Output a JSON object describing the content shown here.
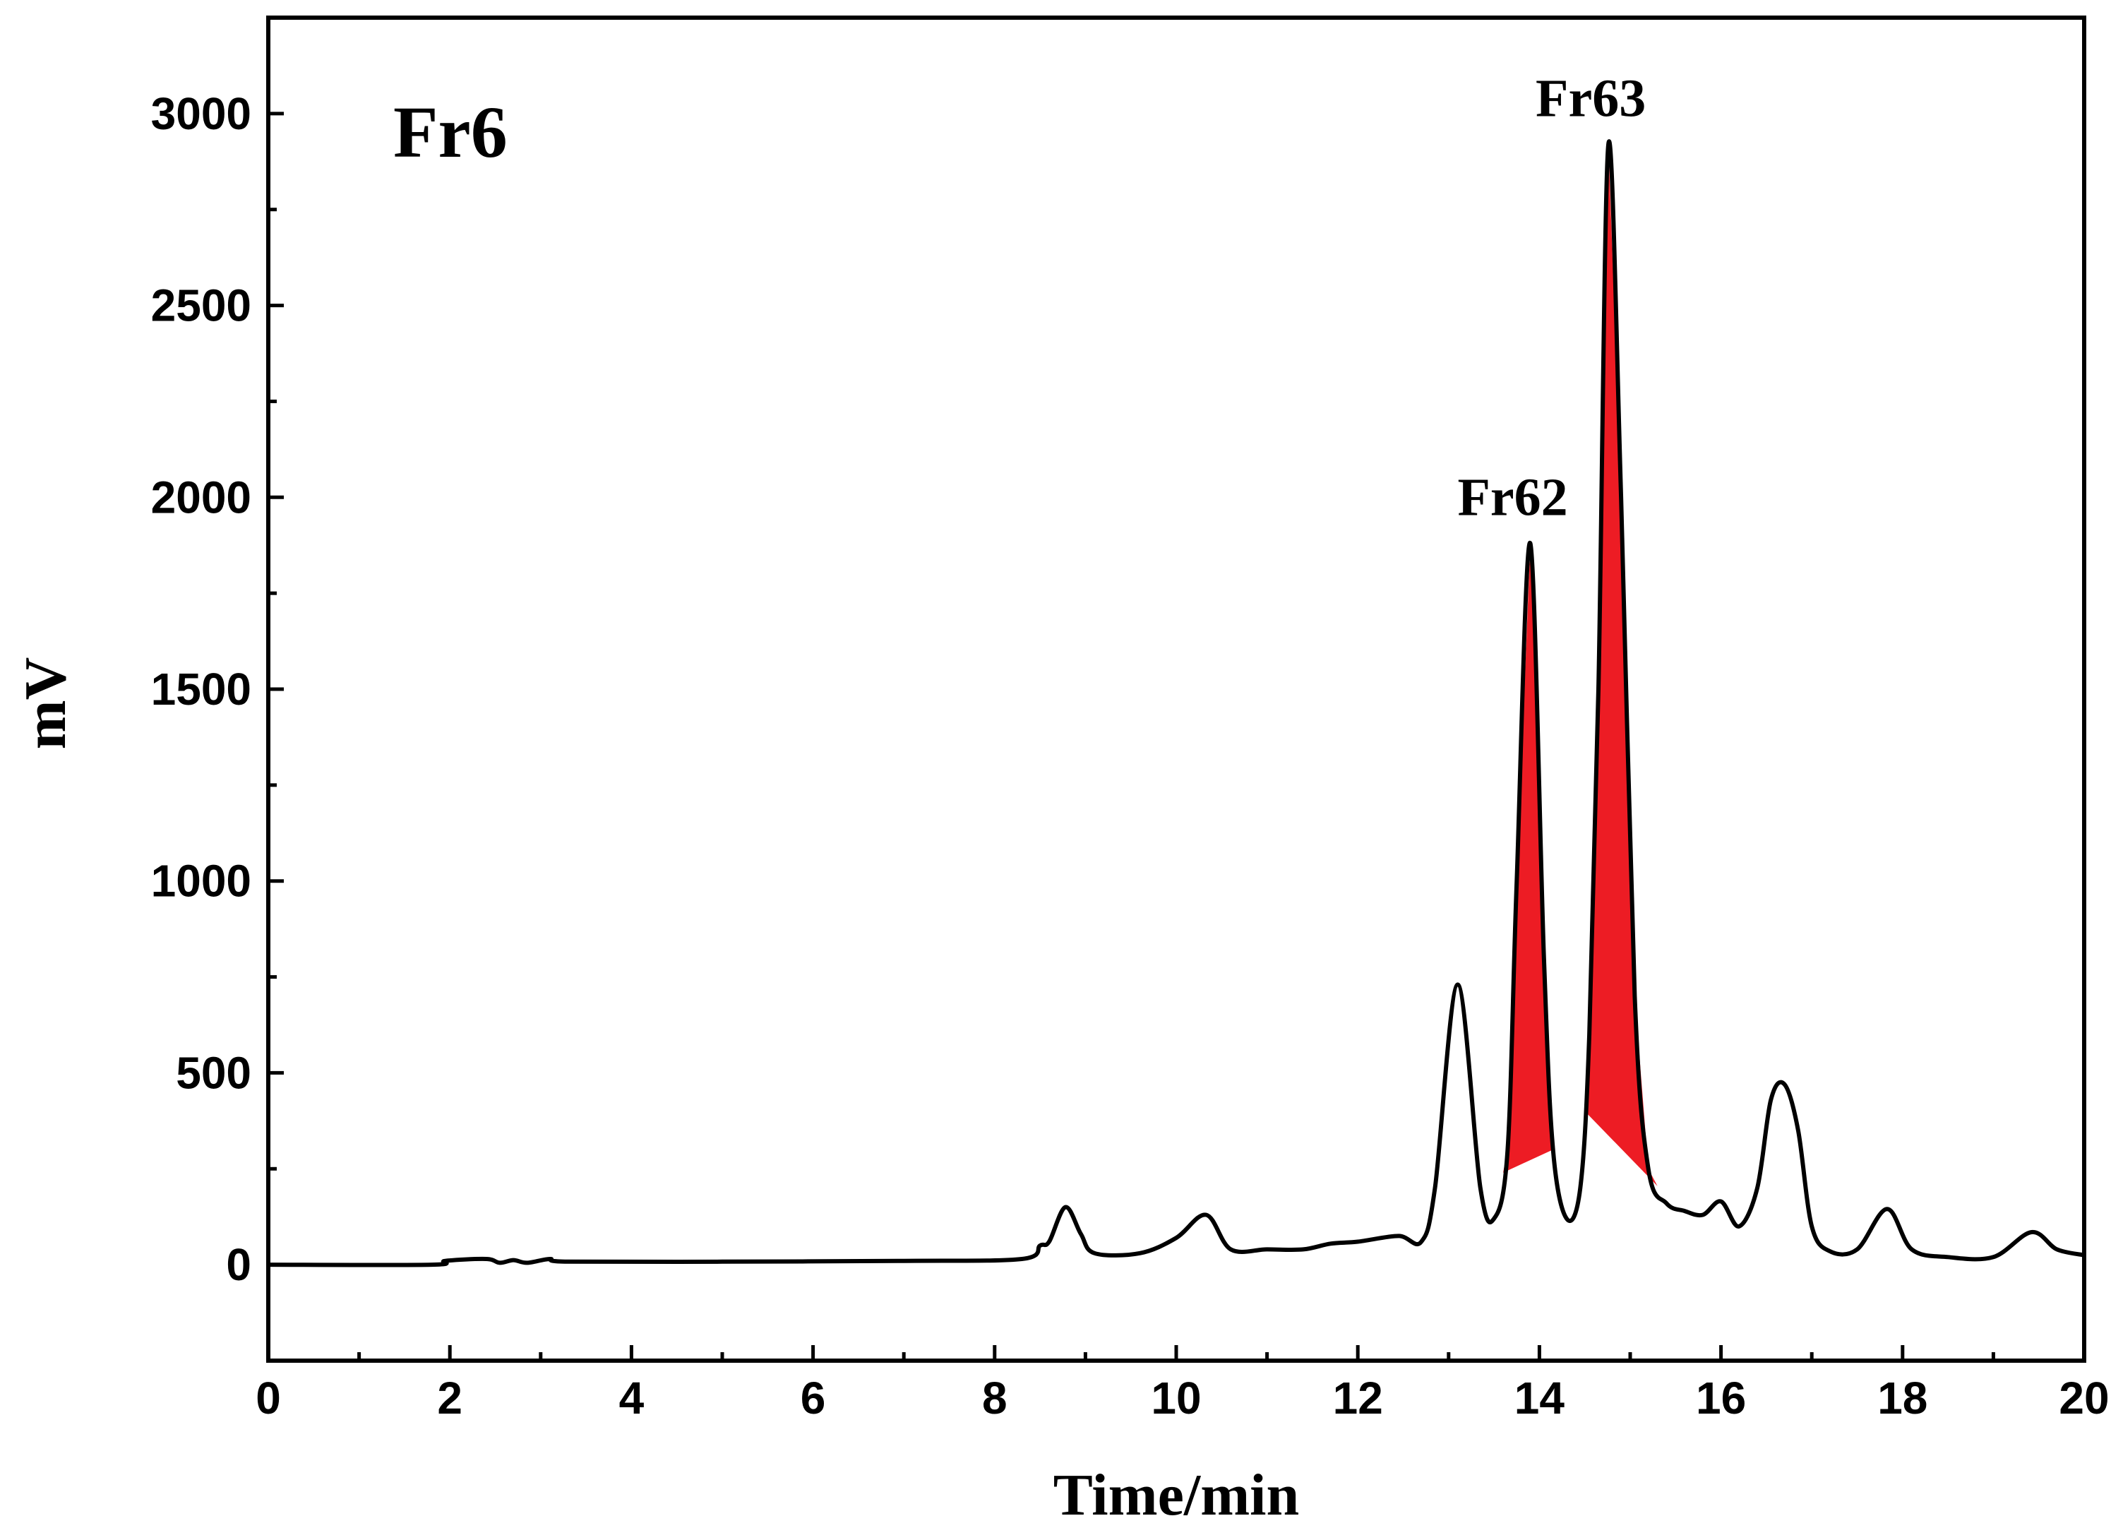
{
  "chart_data": {
    "type": "line",
    "panel_label": "Fr6",
    "xlabel": "Time/min",
    "ylabel": "mV",
    "xlim": [
      0,
      20
    ],
    "ylim": [
      -250,
      3250
    ],
    "x_ticks": [
      "0",
      "2",
      "4",
      "6",
      "8",
      "10",
      "12",
      "14",
      "16",
      "18",
      "20"
    ],
    "y_ticks": [
      "0",
      "500",
      "1000",
      "1500",
      "2000",
      "2500",
      "3000"
    ],
    "grid": false,
    "legend": "none",
    "colors": {
      "line": "#000000",
      "fill": "#ed1c24"
    },
    "series": [
      {
        "x": [
          0,
          1.8,
          1.95,
          2.4,
          2.55,
          2.7,
          2.85,
          3.1,
          3.3,
          5,
          7,
          8.3,
          8.5,
          8.6,
          8.78,
          8.95,
          9.1,
          9.6,
          10,
          10.33,
          10.6,
          11,
          11.4,
          11.7,
          12,
          12.45,
          12.7,
          12.85,
          13.1,
          13.35,
          13.5,
          13.65,
          13.75,
          13.9,
          14.05,
          14.15,
          14.3,
          14.45,
          14.55,
          14.65,
          14.76,
          14.9,
          15.05,
          15.2,
          15.4,
          15.6,
          15.8,
          16,
          16.2,
          16.4,
          16.55,
          16.7,
          16.85,
          17,
          17.2,
          17.5,
          17.83,
          18.1,
          18.5,
          19,
          19.42,
          19.7,
          20
        ],
        "y": [
          0,
          0,
          10,
          15,
          5,
          12,
          5,
          15,
          8,
          8,
          10,
          15,
          50,
          60,
          150,
          80,
          30,
          30,
          70,
          130,
          40,
          40,
          40,
          55,
          60,
          75,
          60,
          200,
          730,
          200,
          120,
          300,
          1000,
          1880,
          800,
          300,
          120,
          200,
          600,
          1500,
          2920,
          2000,
          700,
          250,
          160,
          140,
          130,
          165,
          100,
          200,
          430,
          470,
          350,
          100,
          35,
          40,
          145,
          40,
          20,
          20,
          85,
          40,
          25
        ]
      }
    ],
    "annotations": [
      {
        "text": "Fr62",
        "x": 13.9,
        "y": 1880,
        "fill_range": [
          13.6,
          14.15
        ]
      },
      {
        "text": "Fr63",
        "x": 14.76,
        "y": 2920,
        "fill_range": [
          14.5,
          15.3
        ]
      }
    ]
  }
}
